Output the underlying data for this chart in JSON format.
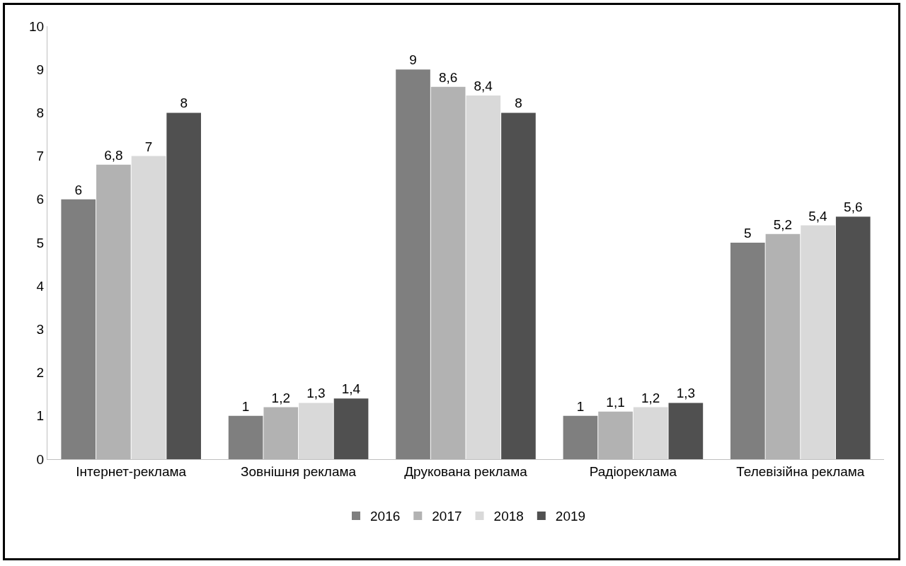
{
  "chart_data": {
    "type": "bar",
    "categories": [
      "Інтернет-реклама",
      "Зовнішня реклама",
      "Друкована реклама",
      "Радіореклама",
      "Телевізійна реклама"
    ],
    "series": [
      {
        "name": "2016",
        "color": "#7f7f7f",
        "values": [
          6,
          1,
          9,
          1,
          5
        ],
        "value_labels": [
          "6",
          "1",
          "9",
          "1",
          "5"
        ]
      },
      {
        "name": "2017",
        "color": "#b2b2b2",
        "values": [
          6.8,
          1.2,
          8.6,
          1.1,
          5.2
        ],
        "value_labels": [
          "6,8",
          "1,2",
          "8,6",
          "1,1",
          "5,2"
        ]
      },
      {
        "name": "2018",
        "color": "#d9d9d9",
        "values": [
          7,
          1.3,
          8.4,
          1.2,
          5.4
        ],
        "value_labels": [
          "7",
          "1,3",
          "8,4",
          "1,2",
          "5,4"
        ]
      },
      {
        "name": "2019",
        "color": "#505050",
        "values": [
          8,
          1.4,
          8,
          1.3,
          5.6
        ],
        "value_labels": [
          "8",
          "1,4",
          "8",
          "1,3",
          "5,6"
        ]
      }
    ],
    "ylim": [
      0,
      10
    ],
    "yticks": [
      0,
      1,
      2,
      3,
      4,
      5,
      6,
      7,
      8,
      9,
      10
    ],
    "grid": false,
    "legend": "bottom"
  }
}
